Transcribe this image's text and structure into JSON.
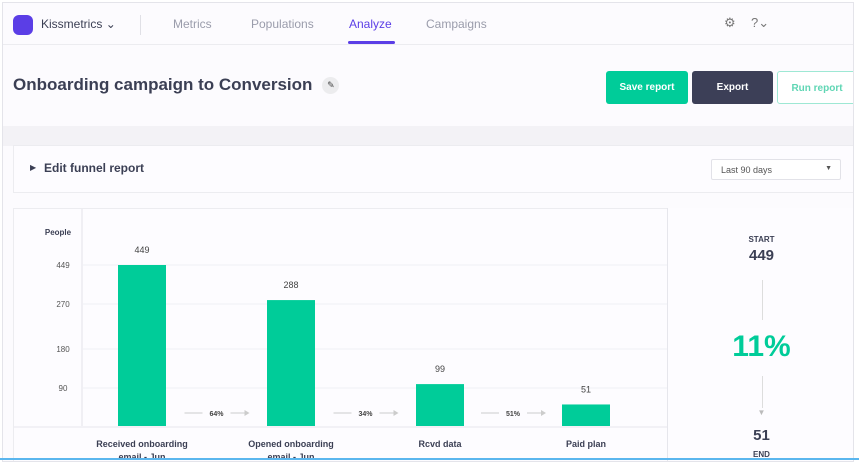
{
  "nav": {
    "brand": "Kissmetrics",
    "items": [
      "Metrics",
      "Populations",
      "Analyze",
      "Campaigns"
    ],
    "active": "Analyze",
    "settings_icon": "gear-icon",
    "help_icon": "question-circle-icon"
  },
  "header": {
    "title": "Onboarding campaign to Conversion",
    "save": "Save report",
    "export": "Export",
    "run": "Run report"
  },
  "edit": {
    "label": "Edit funnel report",
    "range": "Last 90 days"
  },
  "colors": {
    "accent": "#5b3ee6",
    "bar": "#00cc99",
    "dark": "#3c3f57"
  },
  "summary": {
    "start_label": "START",
    "start": "449",
    "rate": "11%",
    "end": "51",
    "end_label": "END"
  },
  "chart_data": {
    "type": "bar",
    "ylabel": "People",
    "yticks": [
      90,
      180,
      270,
      449
    ],
    "categories": [
      "Received onboarding email - Jun",
      "Opened onboarding email - Jun",
      "Rcvd data",
      "Paid plan"
    ],
    "values": [
      449,
      288,
      99,
      51
    ],
    "conversions": [
      "64%",
      "34%",
      "51%"
    ]
  }
}
